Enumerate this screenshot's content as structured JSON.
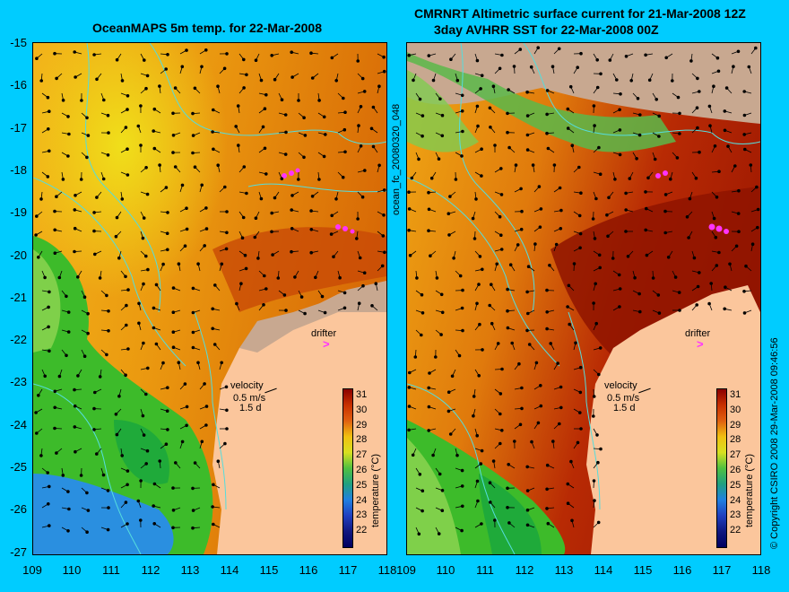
{
  "left": {
    "title": "OceanMAPS 5m temp. for 22-Mar-2008",
    "legend": {
      "velocity_label": "velocity",
      "scale_ms": "0.5 m/s",
      "scale_d": "1.5 d",
      "drifter_label": "drifter"
    },
    "colorbar": {
      "ticks": [
        "31",
        "30",
        "29",
        "28",
        "27",
        "26",
        "25",
        "24",
        "23",
        "22"
      ],
      "label": "temperature (°C)"
    }
  },
  "right": {
    "title1": "CMRNRT Altimetric surface current for 21-Mar-2008 12Z",
    "title2": "3day AVHRR SST for 22-Mar-2008 00Z",
    "legend": {
      "velocity_label": "velocity",
      "scale_ms": "0.5 m/s",
      "scale_d": "1.5 d",
      "drifter_label": "drifter"
    },
    "colorbar": {
      "ticks": [
        "31",
        "30",
        "29",
        "28",
        "27",
        "26",
        "25",
        "24",
        "23",
        "22"
      ],
      "label": "temperature (°C)"
    }
  },
  "axes": {
    "y_ticks": [
      "-15",
      "-16",
      "-17",
      "-18",
      "-19",
      "-20",
      "-21",
      "-22",
      "-23",
      "-24",
      "-25",
      "-26",
      "-27"
    ],
    "x_ticks": [
      "109",
      "110",
      "111",
      "112",
      "113",
      "114",
      "115",
      "116",
      "117",
      "118"
    ]
  },
  "side_label": "ocean_fc_20080320_048",
  "copyright": "© Copyright CSIRO 2008    29-Mar-2008 09:46:56",
  "colors": {
    "background": "#00ccff",
    "land": "#fbc69c",
    "accent_drifter": "#ff33ff",
    "contour": "#55dddd"
  }
}
